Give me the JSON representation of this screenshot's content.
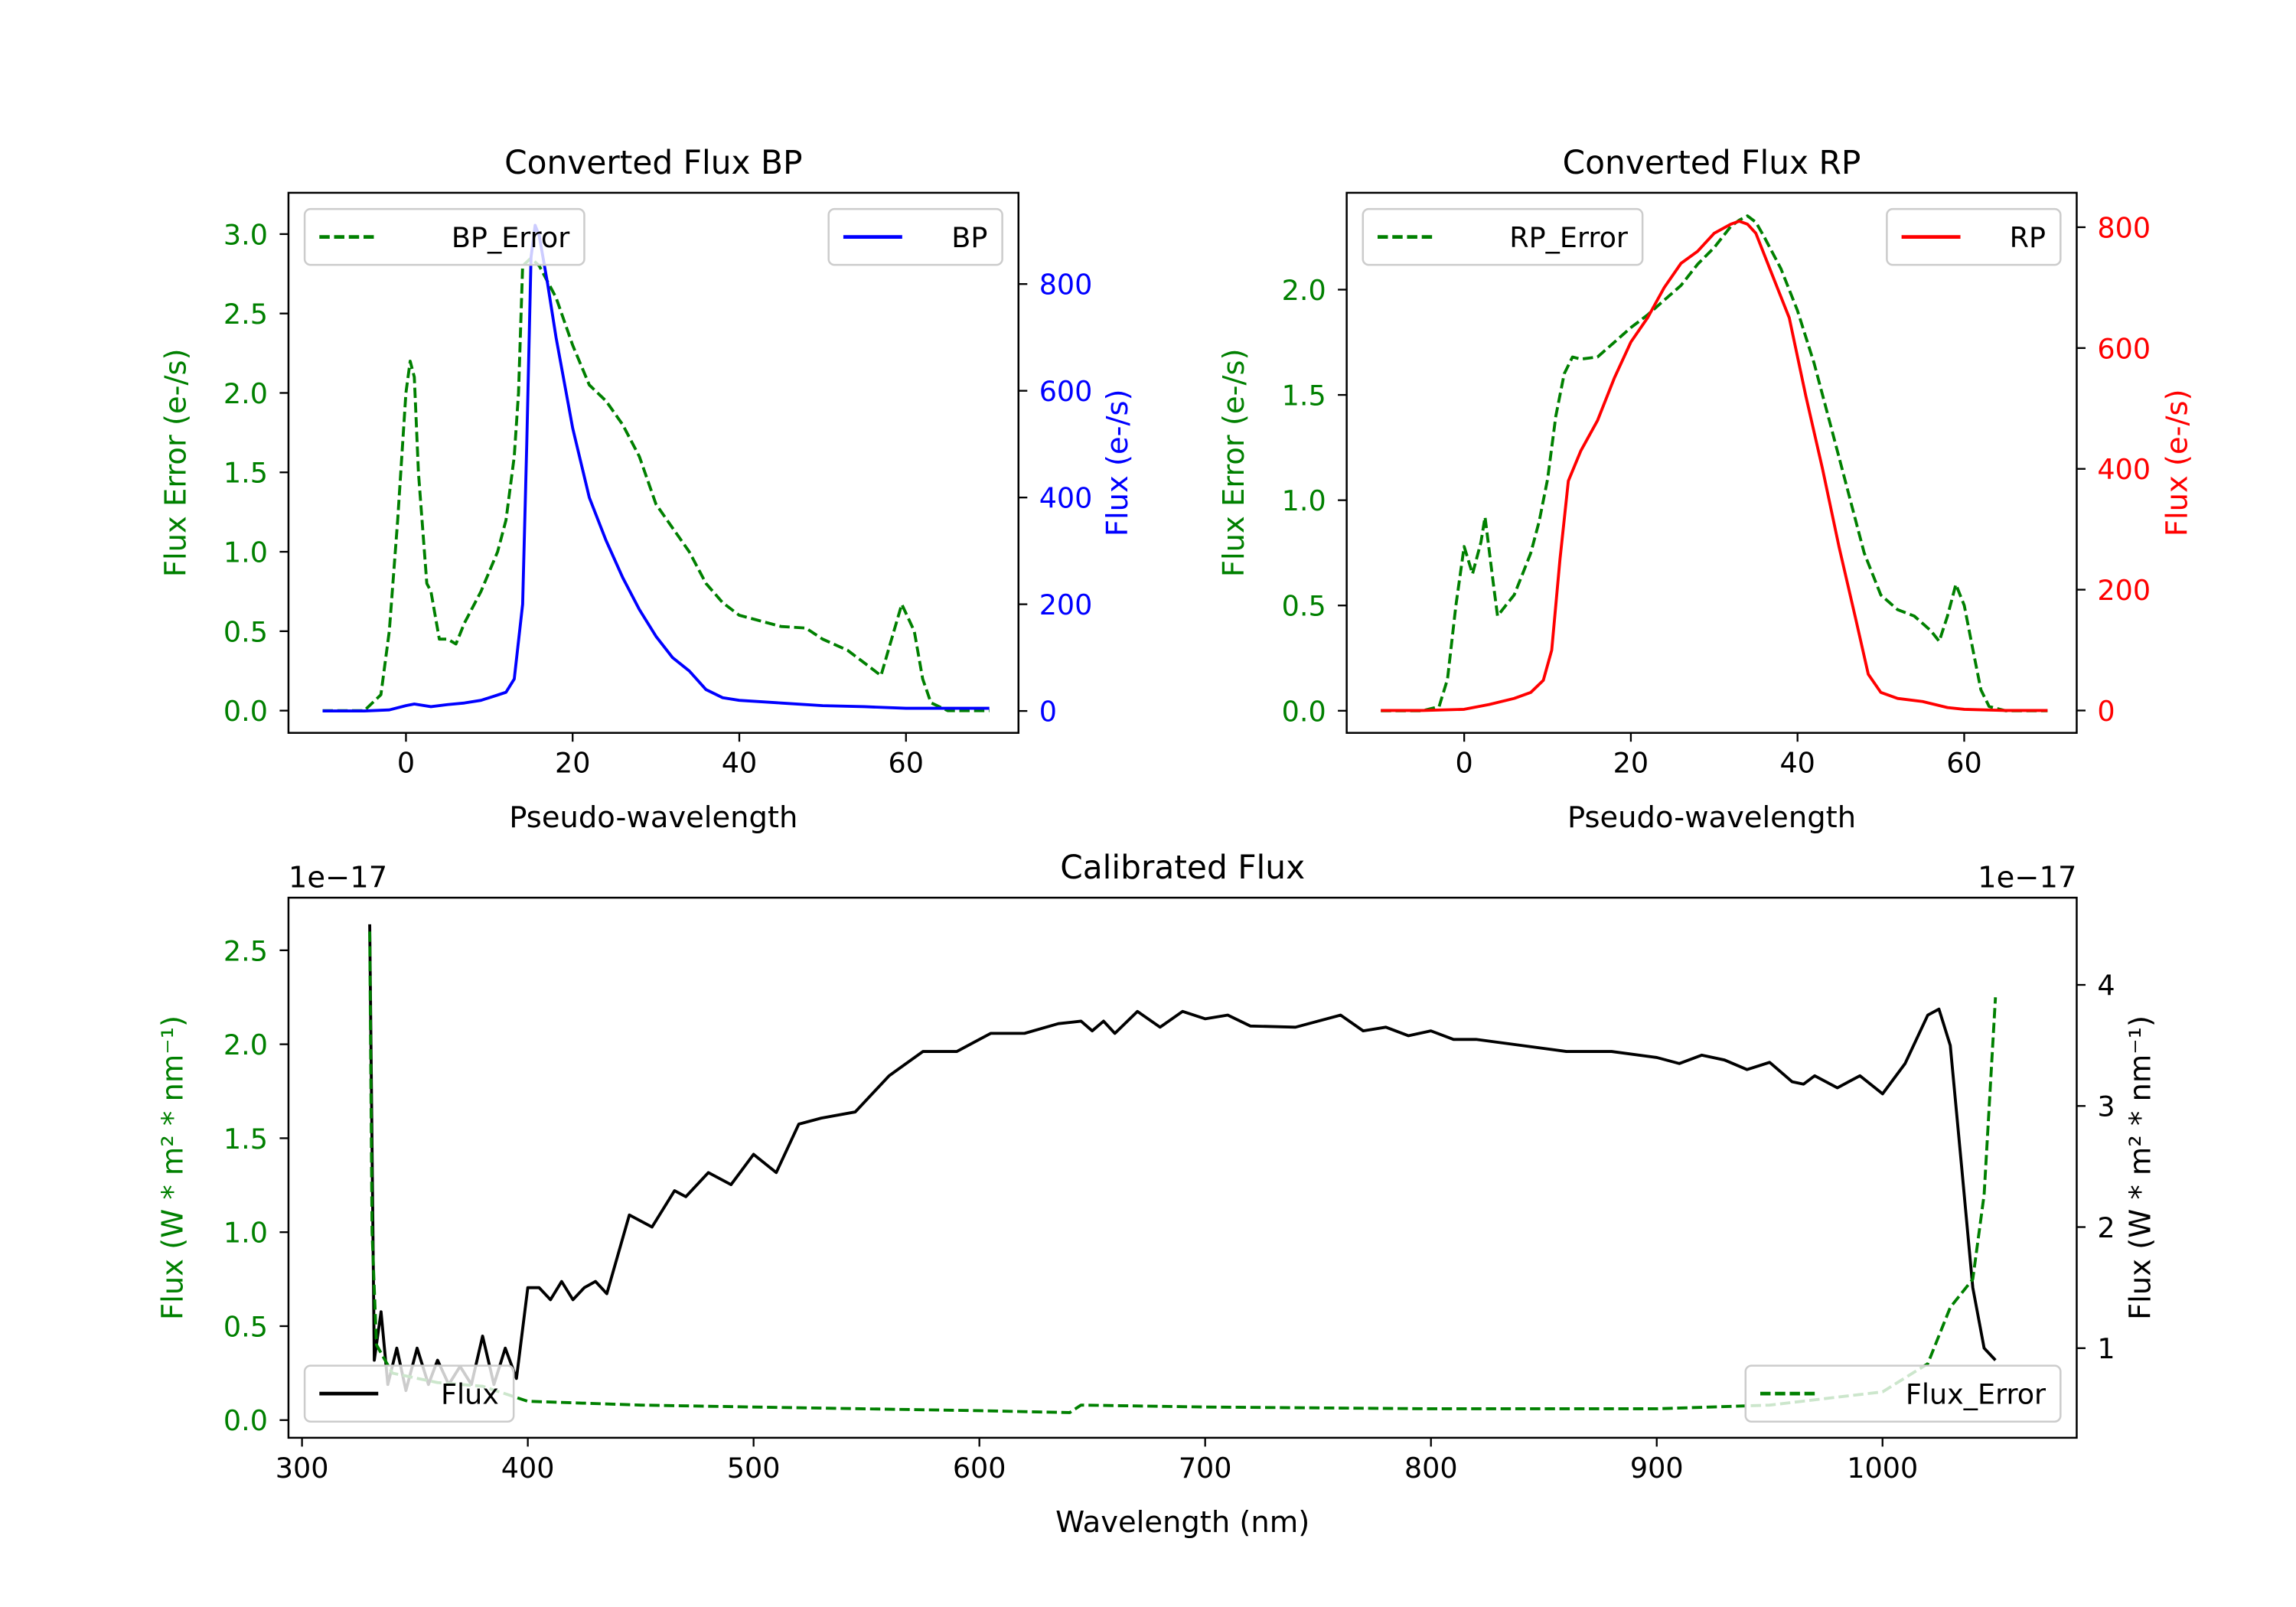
{
  "chart_data": [
    {
      "id": "bp",
      "type": "line",
      "title": "Converted Flux BP",
      "xlabel": "Pseudo-wavelength",
      "ylabel_left": "Flux Error (e-/s)",
      "ylabel_right": "Flux (e-/s)",
      "xlim": [
        -14.1,
        73.5
      ],
      "ylim_left": [
        -0.14,
        3.26
      ],
      "ylim_right": [
        -41,
        971
      ],
      "xticks": [
        0,
        20,
        40,
        60
      ],
      "yticks_left": [
        0.0,
        0.5,
        1.0,
        1.5,
        2.0,
        2.5,
        3.0
      ],
      "yticks_right": [
        0,
        200,
        400,
        600,
        800
      ],
      "left_color": "#008000",
      "right_color": "#0000ff",
      "series": [
        {
          "name": "BP_Error",
          "axis": "left",
          "color": "#008000",
          "style": "dashed",
          "legend": "upper-left",
          "x": [
            -10,
            -5,
            -3,
            -2,
            -1,
            0,
            0.5,
            1,
            1.5,
            2.5,
            3,
            4,
            5,
            6,
            7,
            9,
            11,
            12,
            13,
            13.5,
            14,
            15,
            16,
            18,
            20,
            22,
            24,
            26,
            28,
            30,
            32,
            34,
            36,
            38,
            40,
            45,
            48,
            50,
            53,
            55,
            57,
            58,
            59.5,
            61,
            62,
            63,
            65,
            70
          ],
          "y": [
            0,
            0,
            0.1,
            0.5,
            1.2,
            2.0,
            2.2,
            2.1,
            1.5,
            0.8,
            0.75,
            0.45,
            0.45,
            0.42,
            0.55,
            0.75,
            1.0,
            1.2,
            1.6,
            2.0,
            2.8,
            2.85,
            2.8,
            2.6,
            2.3,
            2.05,
            1.95,
            1.8,
            1.6,
            1.3,
            1.15,
            1.0,
            0.8,
            0.68,
            0.6,
            0.53,
            0.52,
            0.45,
            0.38,
            0.3,
            0.22,
            0.4,
            0.67,
            0.5,
            0.2,
            0.05,
            0,
            0
          ]
        },
        {
          "name": "BP",
          "axis": "right",
          "color": "#0000ff",
          "style": "solid",
          "legend": "upper-right",
          "x": [
            -10,
            -5,
            -2,
            0,
            1,
            3,
            5,
            7,
            9,
            11,
            12,
            13,
            14,
            14.5,
            15,
            15.5,
            16,
            17,
            18,
            20,
            22,
            24,
            26,
            28,
            30,
            32,
            34,
            36,
            38,
            40,
            45,
            50,
            55,
            60,
            65,
            70
          ],
          "y": [
            0,
            0,
            2,
            10,
            13,
            8,
            12,
            15,
            20,
            30,
            35,
            60,
            200,
            500,
            850,
            910,
            890,
            800,
            700,
            530,
            400,
            320,
            250,
            190,
            140,
            100,
            75,
            40,
            25,
            20,
            15,
            10,
            8,
            5,
            5,
            5
          ]
        }
      ]
    },
    {
      "id": "rp",
      "type": "line",
      "title": "Converted Flux RP",
      "xlabel": "Pseudo-wavelength",
      "ylabel_left": "Flux Error (e-/s)",
      "ylabel_right": "Flux (e-/s)",
      "xlim": [
        -14.1,
        73.5
      ],
      "ylim_left": [
        -0.105,
        2.46
      ],
      "ylim_right": [
        -37,
        857
      ],
      "xticks": [
        0,
        20,
        40,
        60
      ],
      "yticks_left": [
        0.0,
        0.5,
        1.0,
        1.5,
        2.0
      ],
      "yticks_right": [
        0,
        200,
        400,
        600,
        800
      ],
      "left_color": "#008000",
      "right_color": "#ff0000",
      "series": [
        {
          "name": "RP_Error",
          "axis": "left",
          "color": "#008000",
          "style": "dashed",
          "legend": "upper-left",
          "x": [
            -10,
            -5,
            -3,
            -2,
            -1,
            0,
            1,
            2,
            2.5,
            3.5,
            4,
            5,
            6,
            7,
            8,
            9,
            10,
            11,
            12,
            13,
            14,
            16,
            18,
            20,
            22,
            24,
            26,
            28,
            30,
            32,
            33,
            34,
            35,
            36,
            38,
            40,
            42,
            44,
            46,
            48,
            50,
            52,
            54,
            56,
            57,
            58,
            59,
            60,
            61,
            62,
            63,
            65,
            70
          ],
          "y": [
            0,
            0,
            0.02,
            0.15,
            0.5,
            0.78,
            0.65,
            0.8,
            0.92,
            0.6,
            0.45,
            0.5,
            0.55,
            0.65,
            0.75,
            0.9,
            1.1,
            1.4,
            1.6,
            1.68,
            1.67,
            1.68,
            1.75,
            1.82,
            1.88,
            1.95,
            2.02,
            2.12,
            2.2,
            2.3,
            2.33,
            2.35,
            2.32,
            2.25,
            2.1,
            1.9,
            1.65,
            1.35,
            1.05,
            0.75,
            0.55,
            0.48,
            0.45,
            0.38,
            0.33,
            0.45,
            0.6,
            0.5,
            0.3,
            0.1,
            0.02,
            0,
            0
          ]
        },
        {
          "name": "RP",
          "axis": "right",
          "color": "#ff0000",
          "style": "solid",
          "legend": "upper-right",
          "x": [
            -10,
            -5,
            0,
            3,
            6,
            8,
            9.5,
            10.5,
            11.5,
            12.5,
            14,
            16,
            18,
            20,
            22,
            24,
            26,
            28,
            30,
            32,
            33,
            34,
            35,
            37,
            39,
            41,
            43,
            45,
            47,
            48.5,
            50,
            52,
            55,
            58,
            60,
            65,
            70
          ],
          "y": [
            0,
            0,
            2,
            10,
            20,
            30,
            50,
            100,
            250,
            380,
            430,
            480,
            550,
            610,
            650,
            700,
            740,
            760,
            790,
            805,
            810,
            805,
            790,
            720,
            650,
            520,
            400,
            270,
            150,
            60,
            30,
            20,
            15,
            5,
            2,
            0,
            0
          ]
        }
      ]
    },
    {
      "id": "cal",
      "type": "line",
      "title": "Calibrated Flux",
      "xlabel": "Wavelength (nm)",
      "ylabel_left": "Flux (W * m² * nm⁻¹)",
      "ylabel_right": "Flux (W * m² * nm⁻¹)",
      "offset_left": "1e−17",
      "offset_right": "1e−17",
      "xlim": [
        294,
        1086
      ],
      "ylim_left": [
        -0.094,
        2.78
      ],
      "ylim_right": [
        0.26,
        4.72
      ],
      "xticks": [
        300,
        400,
        500,
        600,
        700,
        800,
        900,
        1000
      ],
      "yticks_left": [
        0.0,
        0.5,
        1.0,
        1.5,
        2.0,
        2.5
      ],
      "yticks_right": [
        1,
        2,
        3,
        4
      ],
      "left_color": "#008000",
      "right_color": "#000000",
      "series": [
        {
          "name": "Flux",
          "axis": "right",
          "color": "#000000",
          "style": "solid",
          "legend": "lower-left",
          "x": [
            330,
            332,
            335,
            338,
            342,
            346,
            351,
            356,
            360,
            365,
            370,
            375,
            380,
            385,
            390,
            395,
            400,
            405,
            410,
            415,
            420,
            425,
            430,
            435,
            445,
            450,
            455,
            465,
            470,
            480,
            490,
            500,
            510,
            520,
            530,
            545,
            560,
            575,
            590,
            605,
            620,
            635,
            645,
            650,
            655,
            660,
            670,
            680,
            690,
            700,
            710,
            720,
            740,
            760,
            770,
            780,
            790,
            800,
            810,
            820,
            840,
            860,
            880,
            900,
            910,
            920,
            930,
            940,
            950,
            960,
            965,
            970,
            980,
            990,
            1000,
            1010,
            1020,
            1025,
            1030,
            1035,
            1040,
            1045,
            1050
          ],
          "y": [
            4.5,
            0.9,
            1.3,
            0.7,
            1.0,
            0.65,
            1.0,
            0.7,
            0.9,
            0.7,
            0.85,
            0.7,
            1.1,
            0.7,
            1.0,
            0.75,
            1.5,
            1.5,
            1.4,
            1.55,
            1.4,
            1.5,
            1.55,
            1.45,
            2.1,
            2.05,
            2.0,
            2.3,
            2.25,
            2.45,
            2.35,
            2.6,
            2.45,
            2.85,
            2.9,
            2.95,
            3.25,
            3.45,
            3.45,
            3.6,
            3.6,
            3.68,
            3.7,
            3.62,
            3.7,
            3.6,
            3.78,
            3.65,
            3.78,
            3.72,
            3.75,
            3.66,
            3.65,
            3.75,
            3.62,
            3.65,
            3.58,
            3.62,
            3.55,
            3.55,
            3.5,
            3.45,
            3.45,
            3.4,
            3.35,
            3.42,
            3.38,
            3.3,
            3.36,
            3.2,
            3.18,
            3.25,
            3.15,
            3.25,
            3.1,
            3.35,
            3.75,
            3.8,
            3.5,
            2.5,
            1.5,
            1.0,
            0.9
          ]
        },
        {
          "name": "Flux_Error",
          "axis": "left",
          "color": "#008000",
          "style": "dashed",
          "legend": "lower-right",
          "x": [
            330,
            331,
            333,
            340,
            360,
            380,
            400,
            450,
            500,
            600,
            640,
            645,
            700,
            800,
            900,
            950,
            1000,
            1020,
            1030,
            1040,
            1045,
            1050
          ],
          "y": [
            2.6,
            1.0,
            0.4,
            0.25,
            0.2,
            0.18,
            0.1,
            0.08,
            0.07,
            0.05,
            0.04,
            0.08,
            0.07,
            0.06,
            0.06,
            0.08,
            0.15,
            0.3,
            0.6,
            0.75,
            1.2,
            2.25
          ]
        }
      ]
    }
  ]
}
